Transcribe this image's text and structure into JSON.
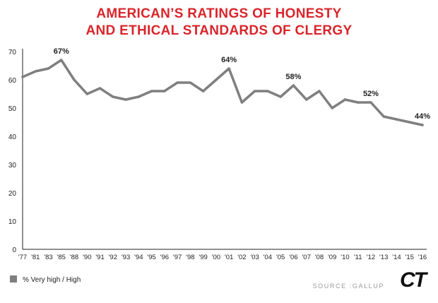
{
  "chart_data": {
    "type": "line",
    "title_lines": [
      "AMERICAN’S RATINGS OF HONESTY",
      "AND ETHICAL STANDARDS OF CLERGY"
    ],
    "x": [
      "'77",
      "'81",
      "'83",
      "'85",
      "'88",
      "'90",
      "'91",
      "'92",
      "'93",
      "'94",
      "'95",
      "'96",
      "'97",
      "'98",
      "'99",
      "'00",
      "'01",
      "'02",
      "'03",
      "'04",
      "'05",
      "'06",
      "'07",
      "'08",
      "'09",
      "'10",
      "'11",
      "'12",
      "'13",
      "'14",
      "'15",
      "'16"
    ],
    "series": [
      {
        "name": "% Very high / High",
        "color": "#7f7f7f",
        "values": [
          61,
          63,
          64,
          67,
          60,
          55,
          57,
          54,
          53,
          54,
          56,
          56,
          59,
          59,
          56,
          60,
          64,
          52,
          56,
          56,
          54,
          58,
          53,
          56,
          50,
          53,
          52,
          52,
          47,
          46,
          45,
          44
        ]
      }
    ],
    "annotations": [
      {
        "x_index": 3,
        "label": "67%"
      },
      {
        "x_index": 16,
        "label": "64%"
      },
      {
        "x_index": 21,
        "label": "58%"
      },
      {
        "x_index": 27,
        "label": "52%"
      },
      {
        "x_index": 31,
        "label": "44%"
      }
    ],
    "yticks": [
      0,
      10,
      20,
      30,
      40,
      50,
      60,
      70
    ],
    "ylim": [
      0,
      70
    ],
    "grid": false,
    "legend_position": "bottom-left"
  },
  "source_text": "SOURCE :GALLUP",
  "logo_text": "CT"
}
